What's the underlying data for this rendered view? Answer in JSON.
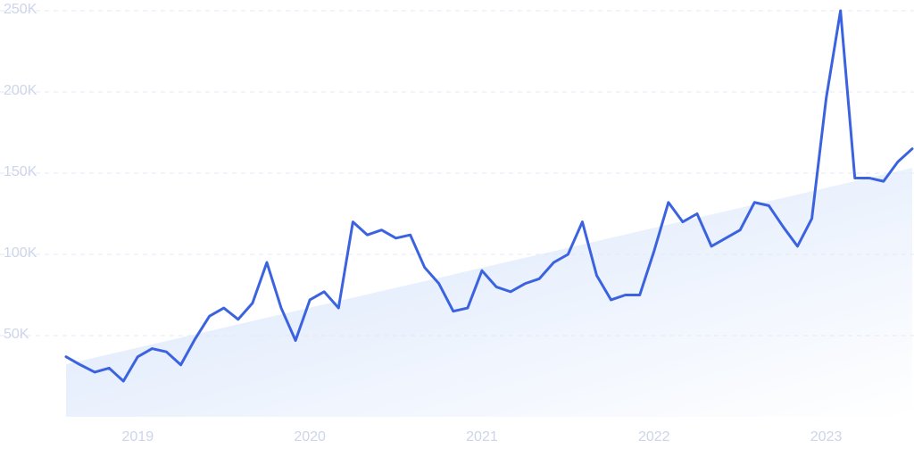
{
  "chart_data": {
    "type": "line",
    "categories": [
      null,
      null,
      null,
      null,
      null,
      "2019",
      null,
      null,
      null,
      null,
      null,
      null,
      null,
      null,
      null,
      null,
      null,
      "2020",
      null,
      null,
      null,
      null,
      null,
      null,
      null,
      null,
      null,
      null,
      null,
      "2021",
      null,
      null,
      null,
      null,
      null,
      null,
      null,
      null,
      null,
      null,
      null,
      "2022",
      null,
      null,
      null,
      null,
      null,
      null,
      null,
      null,
      null,
      null,
      null,
      "2023",
      null,
      null,
      null,
      null,
      null,
      null
    ],
    "series": [
      {
        "color": "#3b63e0",
        "values": [
          37000,
          32000,
          27500,
          30000,
          22000,
          37000,
          42000,
          40000,
          32000,
          48000,
          62000,
          67000,
          60000,
          70000,
          95000,
          67000,
          47000,
          72000,
          77000,
          67000,
          120000,
          112000,
          115000,
          110000,
          112000,
          92000,
          82000,
          65000,
          67000,
          90000,
          80000,
          77000,
          82000,
          85000,
          95000,
          100000,
          120000,
          87000,
          72000,
          75000,
          75000,
          102000,
          132000,
          120000,
          125000,
          105000,
          110000,
          115000,
          132000,
          130000,
          117000,
          105000,
          122000,
          196000,
          250000,
          147000,
          147000,
          145000,
          157000,
          165000
        ]
      }
    ],
    "ylim": [
      0,
      250000
    ],
    "yticks": [
      {
        "value": 50000,
        "label": "50K"
      },
      {
        "value": 100000,
        "label": "100K"
      },
      {
        "value": 150000,
        "label": "150K"
      },
      {
        "value": 200000,
        "label": "200K"
      },
      {
        "value": 250000,
        "label": "250K"
      }
    ],
    "grid": true,
    "trend_area": true
  }
}
